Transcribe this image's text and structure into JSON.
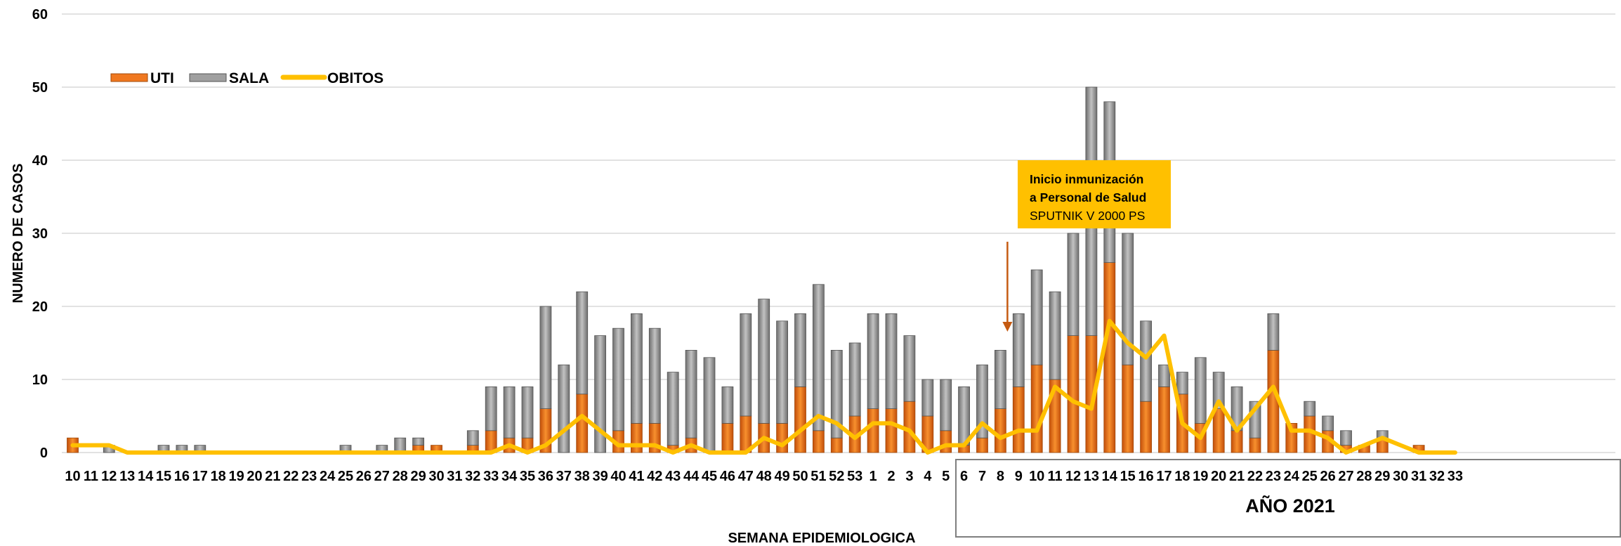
{
  "chart_data": {
    "type": "bar",
    "stacked": true,
    "ylabel": "NUMERO DE CASOS",
    "xlabel": "SEMANA EPIDEMIOLOGICA",
    "year_label": "AÑO 2021",
    "ylim": [
      0,
      60
    ],
    "yticks": [
      "0",
      "10",
      "20",
      "30",
      "40",
      "50",
      "60"
    ],
    "grid": true,
    "legend_position": "top-left",
    "categories": [
      "10",
      "11",
      "12",
      "13",
      "14",
      "15",
      "16",
      "17",
      "18",
      "19",
      "20",
      "21",
      "22",
      "23",
      "24",
      "25",
      "26",
      "27",
      "28",
      "29",
      "30",
      "31",
      "32",
      "33",
      "34",
      "35",
      "36",
      "37",
      "38",
      "39",
      "40",
      "41",
      "42",
      "43",
      "44",
      "45",
      "46",
      "47",
      "48",
      "49",
      "50",
      "51",
      "52",
      "53",
      "1",
      "2",
      "3",
      "4",
      "5",
      "6",
      "7",
      "8",
      "9",
      "10",
      "11",
      "12",
      "13",
      "14",
      "15",
      "16",
      "17",
      "18",
      "19",
      "20",
      "21",
      "22",
      "23",
      "24",
      "25",
      "26",
      "27",
      "28",
      "29",
      "30",
      "31",
      "32",
      "33"
    ],
    "series": [
      {
        "name": "UTI",
        "kind": "bar",
        "color": "#F07820",
        "values": [
          2,
          0,
          0,
          0,
          0,
          0,
          0,
          0,
          0,
          0,
          0,
          0,
          0,
          0,
          0,
          0,
          0,
          0,
          0,
          1,
          1,
          0,
          1,
          3,
          2,
          2,
          6,
          0,
          8,
          0,
          3,
          4,
          4,
          1,
          2,
          0,
          4,
          5,
          4,
          4,
          9,
          3,
          2,
          5,
          6,
          6,
          7,
          5,
          3,
          1,
          2,
          6,
          9,
          12,
          10,
          16,
          16,
          26,
          12,
          7,
          9,
          8,
          4,
          6,
          3,
          2,
          14,
          4,
          5,
          3,
          1,
          1,
          2,
          0,
          1,
          0,
          0
        ]
      },
      {
        "name": "SALA",
        "kind": "bar",
        "color": "#A0A0A0",
        "values": [
          0,
          0,
          1,
          0,
          0,
          1,
          1,
          1,
          0,
          0,
          0,
          0,
          0,
          0,
          0,
          1,
          0,
          1,
          2,
          1,
          0,
          0,
          2,
          6,
          7,
          7,
          14,
          12,
          14,
          16,
          14,
          15,
          13,
          10,
          12,
          13,
          5,
          14,
          17,
          14,
          10,
          20,
          12,
          10,
          13,
          13,
          9,
          5,
          7,
          8,
          10,
          8,
          10,
          13,
          12,
          14,
          34,
          22,
          18,
          11,
          3,
          3,
          9,
          5,
          6,
          5,
          5,
          0,
          2,
          2,
          2,
          0,
          1,
          0,
          0,
          0,
          0
        ]
      },
      {
        "name": "OBITOS",
        "kind": "line",
        "color": "#FFC000",
        "values": [
          1,
          1,
          1,
          0,
          0,
          0,
          0,
          0,
          0,
          0,
          0,
          0,
          0,
          0,
          0,
          0,
          0,
          0,
          0,
          0,
          0,
          0,
          0,
          0,
          1,
          0,
          1,
          3,
          5,
          3,
          1,
          1,
          1,
          0,
          1,
          0,
          0,
          0,
          2,
          1,
          3,
          5,
          4,
          2,
          4,
          4,
          3,
          0,
          1,
          1,
          4,
          2,
          3,
          3,
          9,
          7,
          6,
          18,
          15,
          13,
          16,
          4,
          2,
          7,
          3,
          6,
          9,
          3,
          3,
          2,
          0,
          1,
          2,
          1,
          0,
          0,
          0
        ]
      }
    ],
    "annotation": {
      "line1": "Inicio inmunización",
      "line2": "a Personal de Salud",
      "line3": "SPUTNIK  V 2000 PS",
      "arrow_at_category_index": 51,
      "arrow_color": "#C55A11"
    }
  }
}
